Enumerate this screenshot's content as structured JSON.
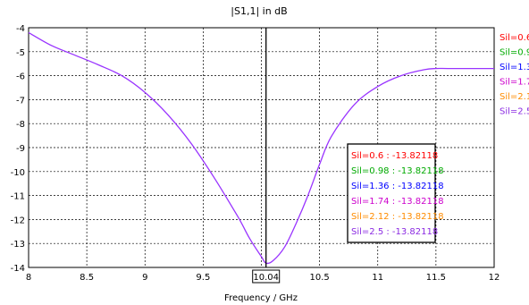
{
  "chart_data": {
    "type": "line",
    "title": "|S1,1| in dB",
    "xlabel": "Frequency / GHz",
    "ylabel": "",
    "xlim": [
      8,
      12
    ],
    "ylim": [
      -14,
      -4
    ],
    "xticks": [
      8,
      8.5,
      9,
      9.5,
      10,
      10.5,
      11,
      11.5,
      12
    ],
    "yticks": [
      -4,
      -5,
      -6,
      -7,
      -8,
      -9,
      -10,
      -11,
      -12,
      -13,
      -14
    ],
    "grid": true,
    "legend_position": "right",
    "series": [
      {
        "name": "Sil=0.6",
        "color": "#ff0000"
      },
      {
        "name": "Sil=0.98",
        "color": "#00aa00"
      },
      {
        "name": "Sil=1.36",
        "color": "#0000ff"
      },
      {
        "name": "Sil=1.74",
        "color": "#cc00cc"
      },
      {
        "name": "Sil=2.12",
        "color": "#ff8c00"
      },
      {
        "name": "Sil=2.5",
        "color": "#8b2be2"
      }
    ],
    "curve": {
      "color": "#9933ff",
      "x": [
        8.0,
        8.2,
        8.4,
        8.6,
        8.8,
        9.0,
        9.2,
        9.4,
        9.6,
        9.8,
        9.9,
        10.0,
        10.04,
        10.1,
        10.2,
        10.3,
        10.4,
        10.5,
        10.6,
        10.8,
        11.0,
        11.2,
        11.4,
        11.5,
        11.6,
        11.8,
        12.0
      ],
      "y": [
        -4.2,
        -4.75,
        -5.15,
        -5.55,
        -6.0,
        -6.7,
        -7.65,
        -8.85,
        -10.3,
        -11.9,
        -12.8,
        -13.55,
        -13.82,
        -13.72,
        -13.15,
        -12.15,
        -11.0,
        -9.7,
        -8.55,
        -7.2,
        -6.45,
        -6.0,
        -5.75,
        -5.7,
        -5.7,
        -5.7,
        -5.7
      ]
    },
    "marker": {
      "x": 10.04,
      "x_label": "10.04",
      "entries": [
        {
          "text": "Sil=0.6 : -13.82118",
          "color": "#ff0000"
        },
        {
          "text": "Sil=0.98 : -13.82118",
          "color": "#00aa00"
        },
        {
          "text": "Sil=1.36 : -13.82118",
          "color": "#0000ff"
        },
        {
          "text": "Sil=1.74 : -13.82118",
          "color": "#cc00cc"
        },
        {
          "text": "Sil=2.12 : -13.82118",
          "color": "#ff8c00"
        },
        {
          "text": "Sil=2.5 : -13.82118",
          "color": "#8b2be2"
        }
      ]
    }
  }
}
